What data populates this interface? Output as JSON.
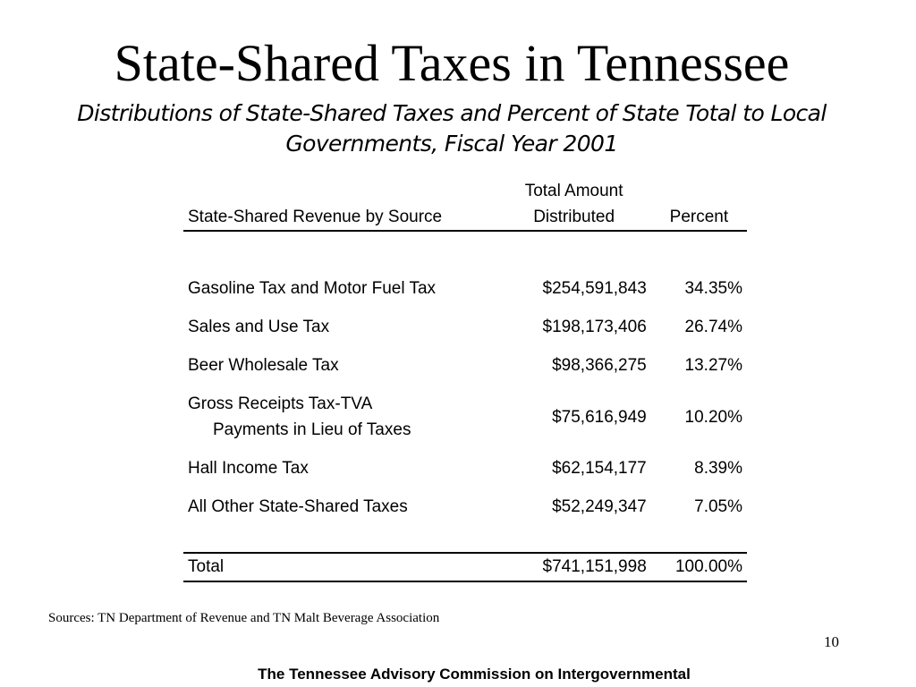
{
  "slide": {
    "title": "State-Shared Taxes in Tennessee",
    "subtitle": "Distributions of State-Shared Taxes and Percent of State Total to Local Governments, Fiscal Year 2001"
  },
  "table": {
    "headers": {
      "source": "State-Shared Revenue by Source",
      "amount_line1": "Total Amount",
      "amount_line2": "Distributed",
      "percent": "Percent"
    },
    "rows": [
      {
        "source": "Gasoline Tax and Motor Fuel Tax",
        "amount": "$254,591,843",
        "percent": "34.35%"
      },
      {
        "source": "Sales and Use Tax",
        "amount": "$198,173,406",
        "percent": "26.74%"
      },
      {
        "source": "Beer Wholesale Tax",
        "amount": "$98,366,275",
        "percent": "13.27%"
      },
      {
        "source": "Gross Receipts Tax-TVA",
        "source_line2": "Payments in Lieu of Taxes",
        "amount": "$75,616,949",
        "percent": "10.20%"
      },
      {
        "source": "Hall Income Tax",
        "amount": "$62,154,177",
        "percent": "8.39%"
      },
      {
        "source": "All Other State-Shared Taxes",
        "amount": "$52,249,347",
        "percent": "7.05%"
      }
    ],
    "total": {
      "label": "Total",
      "amount": "$741,151,998",
      "percent": "100.00%"
    }
  },
  "sources_note": "Sources: TN Department of Revenue and TN Malt Beverage Association",
  "page_number": "10",
  "footer": "The Tennessee Advisory Commission on Intergovernmental"
}
